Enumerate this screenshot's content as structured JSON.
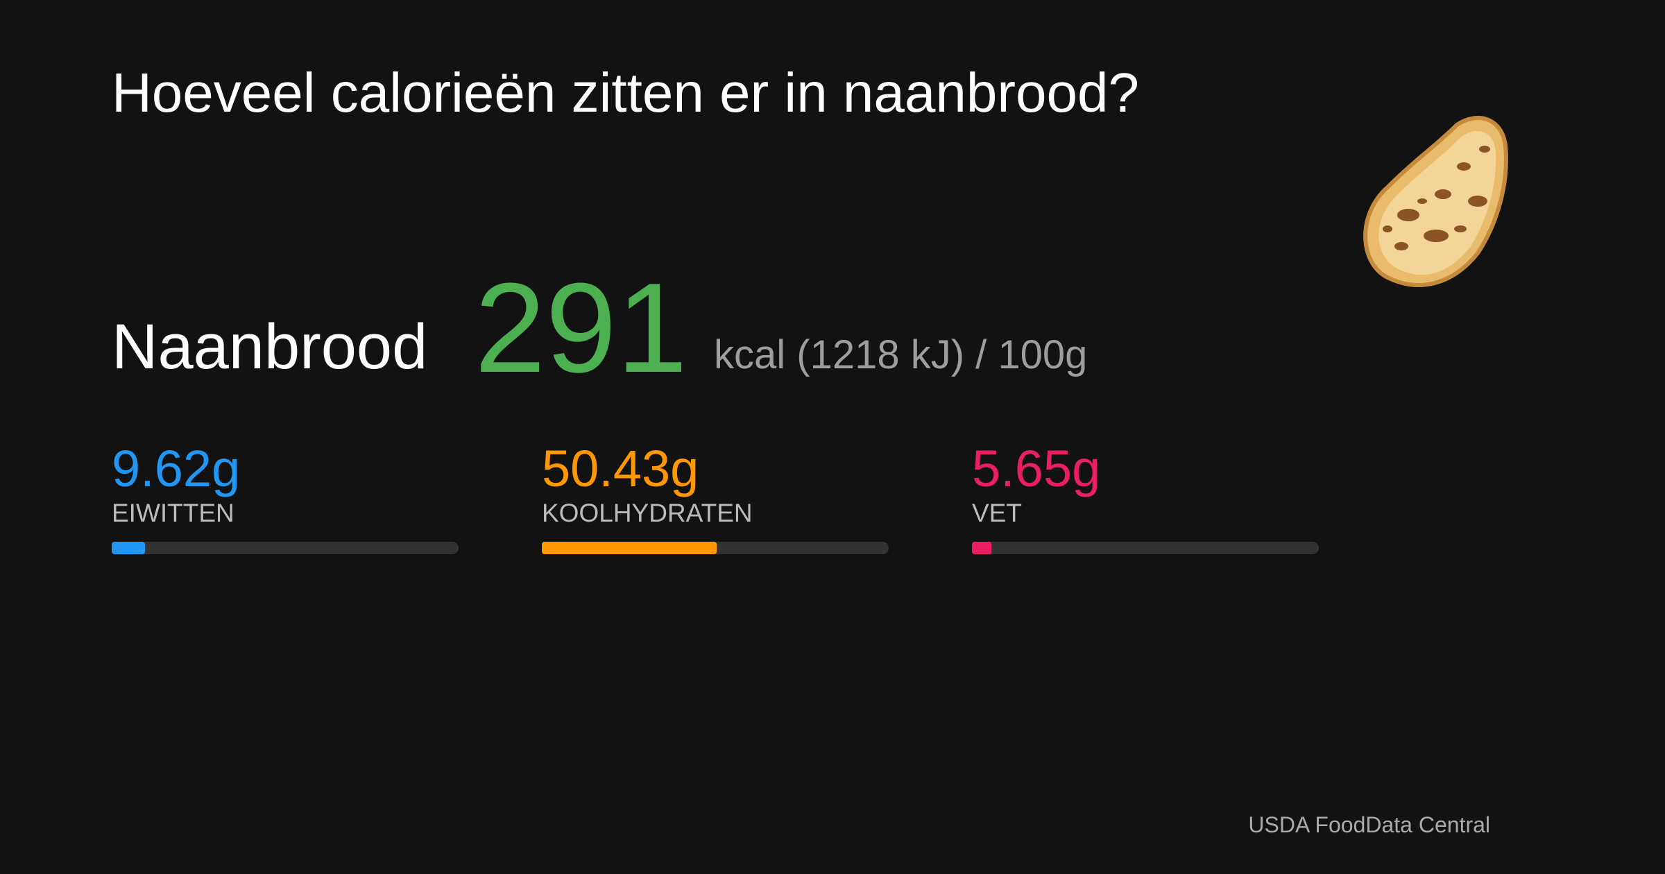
{
  "title": "Hoeveel calorieën zitten er in naanbrood?",
  "food": "Naanbrood",
  "calories": {
    "value": 291,
    "unit_label": "kcal (1218 kJ) / 100g",
    "color": "#4caf50"
  },
  "macros": {
    "categories": [
      "EIWITTEN",
      "KOOLHYDRATEN",
      "VET"
    ],
    "values": [
      9.62,
      50.43,
      5.65
    ],
    "value_labels": [
      "9.62g",
      "50.43g",
      "5.65g"
    ],
    "colors": [
      "#2196f3",
      "#ff9800",
      "#e91e63"
    ],
    "xlim": [
      0,
      100
    ]
  },
  "source": "USDA FoodData Central"
}
